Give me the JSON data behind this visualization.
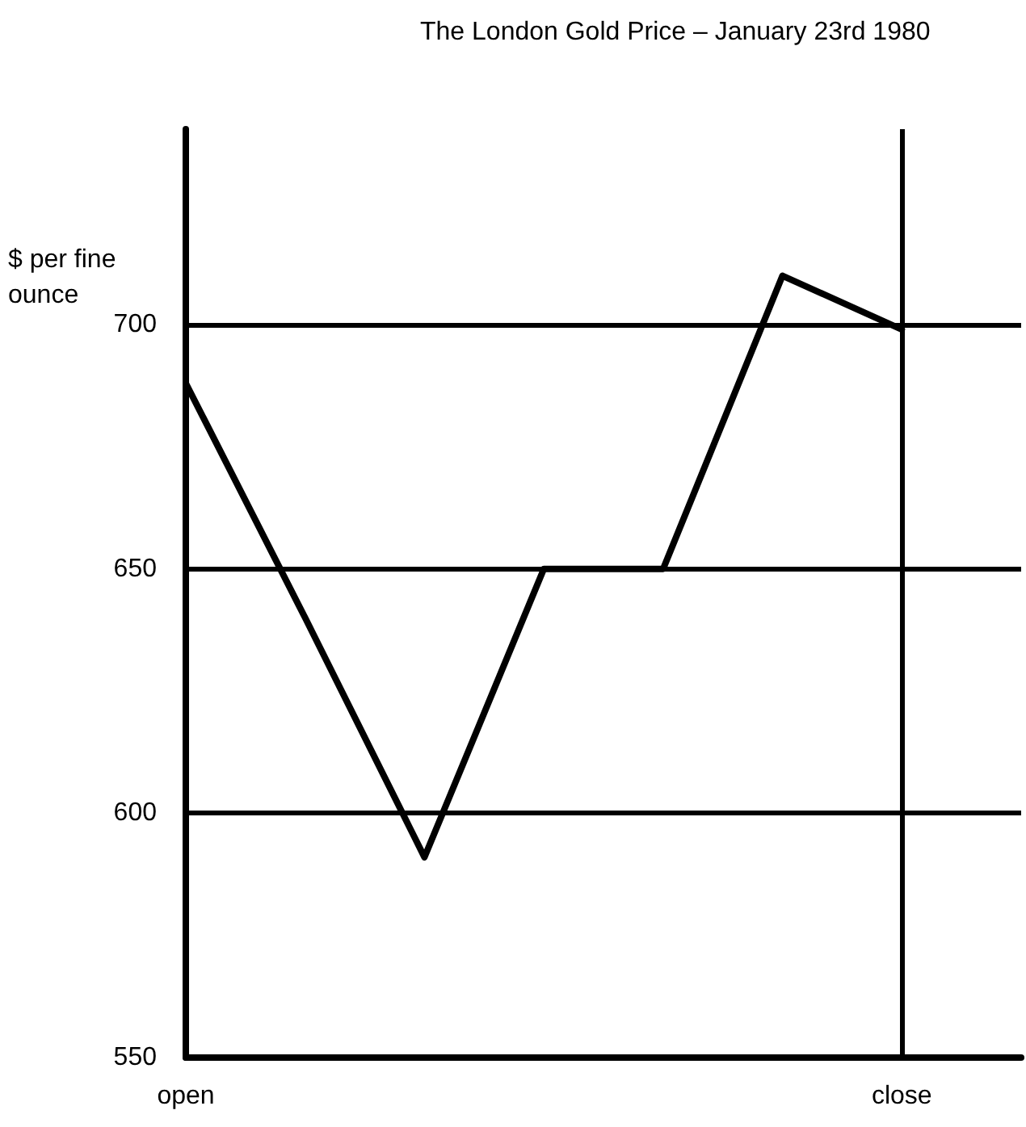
{
  "chart_data": {
    "type": "line",
    "title": "The London Gold Price – January 23rd 1980",
    "ylabel": "$ per fine ounce",
    "categories": [
      "open",
      null,
      null,
      null,
      null,
      null,
      "close",
      null
    ],
    "series": [
      {
        "color": "#000000",
        "values": [
          688,
          640,
          591,
          650,
          650,
          710,
          699,
          null
        ]
      }
    ],
    "ylim": [
      550,
      740
    ],
    "yticks": [
      550,
      600,
      650,
      700
    ],
    "ref_lines": [
      {
        "axis": "x",
        "value": "close",
        "color": "#000000"
      }
    ],
    "grid": "y",
    "marker": "none",
    "line_style": "solid"
  }
}
